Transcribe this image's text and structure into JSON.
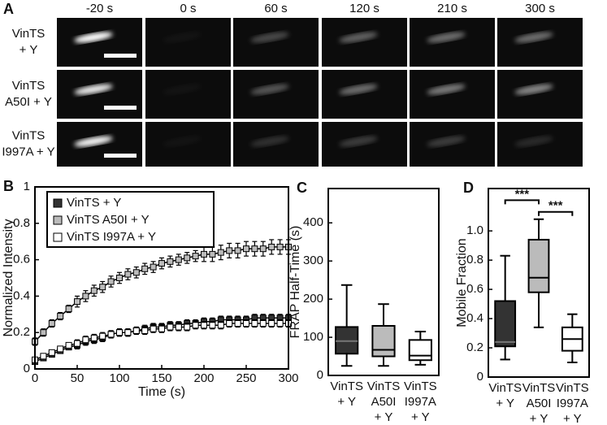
{
  "panel_a": {
    "letter": "A",
    "time_labels": [
      "-20 s",
      "0 s",
      "60 s",
      "120 s",
      "210 s",
      "300 s"
    ],
    "row_labels": [
      [
        "VinTS",
        "+ Y"
      ],
      [
        "VinTS",
        "A50I + Y"
      ],
      [
        "VinTS",
        "I997A + Y"
      ]
    ]
  },
  "chart_data": [
    {
      "type": "line",
      "letter": "B",
      "xlabel": "Time (s)",
      "ylabel": "Normalized Intensity",
      "x": [
        0,
        10,
        20,
        30,
        40,
        50,
        60,
        70,
        80,
        90,
        100,
        110,
        120,
        130,
        140,
        150,
        160,
        170,
        180,
        190,
        200,
        210,
        220,
        230,
        240,
        250,
        260,
        270,
        280,
        290,
        300
      ],
      "series": [
        {
          "name": "VinTS + Y",
          "color": "#333333",
          "values": [
            0.04,
            0.06,
            0.08,
            0.1,
            0.12,
            0.13,
            0.15,
            0.16,
            0.17,
            0.19,
            0.2,
            0.2,
            0.21,
            0.22,
            0.23,
            0.23,
            0.24,
            0.24,
            0.25,
            0.25,
            0.26,
            0.26,
            0.27,
            0.27,
            0.27,
            0.27,
            0.28,
            0.28,
            0.28,
            0.28,
            0.28
          ],
          "errors": [
            0.01,
            0.01,
            0.01,
            0.01,
            0.01,
            0.02,
            0.02,
            0.02,
            0.02,
            0.02,
            0.02,
            0.02,
            0.02,
            0.02,
            0.02,
            0.02,
            0.02,
            0.02,
            0.02,
            0.02,
            0.02,
            0.02,
            0.02,
            0.02,
            0.02,
            0.02,
            0.02,
            0.02,
            0.02,
            0.02,
            0.02
          ]
        },
        {
          "name": "VinTS A50I + Y",
          "color": "#bbbbbb",
          "values": [
            0.15,
            0.2,
            0.25,
            0.29,
            0.33,
            0.37,
            0.4,
            0.43,
            0.45,
            0.48,
            0.5,
            0.52,
            0.53,
            0.55,
            0.56,
            0.58,
            0.59,
            0.6,
            0.61,
            0.62,
            0.63,
            0.63,
            0.64,
            0.65,
            0.65,
            0.66,
            0.66,
            0.66,
            0.67,
            0.67,
            0.67
          ],
          "errors": [
            0.02,
            0.02,
            0.02,
            0.02,
            0.02,
            0.03,
            0.03,
            0.03,
            0.03,
            0.03,
            0.03,
            0.03,
            0.03,
            0.03,
            0.03,
            0.03,
            0.03,
            0.03,
            0.03,
            0.03,
            0.04,
            0.04,
            0.04,
            0.04,
            0.04,
            0.04,
            0.04,
            0.04,
            0.04,
            0.04,
            0.04
          ]
        },
        {
          "name": "VinTS I997A + Y",
          "color": "#ffffff",
          "values": [
            0.05,
            0.07,
            0.09,
            0.11,
            0.13,
            0.14,
            0.16,
            0.17,
            0.18,
            0.19,
            0.2,
            0.2,
            0.21,
            0.21,
            0.22,
            0.22,
            0.23,
            0.23,
            0.23,
            0.24,
            0.24,
            0.24,
            0.24,
            0.25,
            0.25,
            0.25,
            0.25,
            0.25,
            0.25,
            0.25,
            0.25
          ],
          "errors": [
            0.01,
            0.01,
            0.01,
            0.01,
            0.01,
            0.02,
            0.02,
            0.02,
            0.02,
            0.02,
            0.02,
            0.02,
            0.02,
            0.02,
            0.02,
            0.02,
            0.02,
            0.02,
            0.02,
            0.02,
            0.02,
            0.02,
            0.02,
            0.02,
            0.02,
            0.02,
            0.02,
            0.02,
            0.02,
            0.02,
            0.02
          ]
        }
      ],
      "xlim": [
        0,
        300
      ],
      "xticks": [
        0,
        50,
        100,
        150,
        200,
        250,
        300
      ],
      "ylim": [
        0,
        1
      ],
      "yticks": [
        0,
        0.2,
        0.4,
        0.6,
        0.8,
        1
      ],
      "legend": "upper left"
    },
    {
      "type": "box",
      "letter": "C",
      "ylabel": "FRAP Half-Time (s)",
      "categories": [
        [
          "VinTS",
          "+ Y"
        ],
        [
          "VinTS",
          "A50I",
          "+ Y"
        ],
        [
          "VinTS",
          "I997A",
          "+ Y"
        ]
      ],
      "colors": [
        "#333333",
        "#bbbbbb",
        "#ffffff"
      ],
      "min": [
        25,
        25,
        28
      ],
      "q1": [
        57,
        50,
        40
      ],
      "median": [
        90,
        67,
        52
      ],
      "q3": [
        127,
        130,
        93
      ],
      "max": [
        237,
        187,
        115
      ],
      "ylim": [
        0,
        490
      ],
      "yticks": [
        0,
        100,
        200,
        300,
        400
      ]
    },
    {
      "type": "box",
      "letter": "D",
      "ylabel": "Mobile Fraction",
      "categories": [
        [
          "VinTS",
          "+ Y"
        ],
        [
          "VinTS",
          "A50I",
          "+ Y"
        ],
        [
          "VinTS",
          "I997A",
          "+ Y"
        ]
      ],
      "colors": [
        "#333333",
        "#bbbbbb",
        "#ffffff"
      ],
      "min": [
        0.12,
        0.34,
        0.1
      ],
      "q1": [
        0.21,
        0.58,
        0.18
      ],
      "median": [
        0.24,
        0.68,
        0.26
      ],
      "q3": [
        0.52,
        0.94,
        0.34
      ],
      "max": [
        0.83,
        1.08,
        0.43
      ],
      "ylim": [
        0,
        1.29
      ],
      "yticks": [
        0,
        0.2,
        0.4,
        0.6,
        0.8,
        {
          "value": 1,
          "label": "1.0"
        }
      ],
      "annotations": [
        {
          "text": "***",
          "y": 1.21
        },
        {
          "text": "***",
          "y": 1.13
        }
      ]
    }
  ]
}
